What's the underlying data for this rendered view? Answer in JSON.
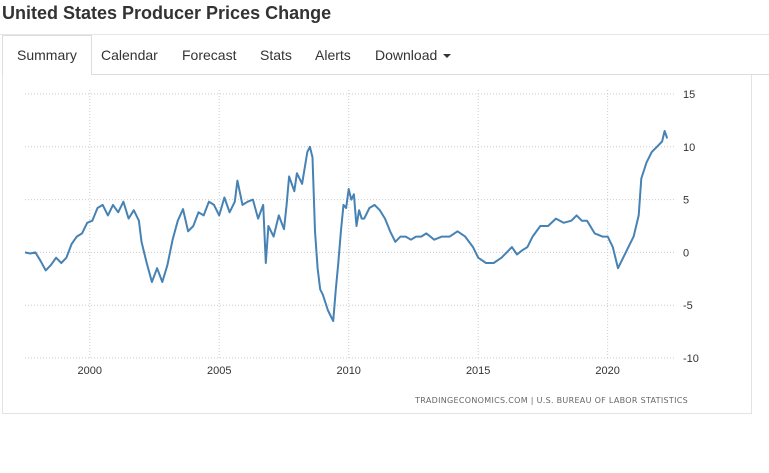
{
  "header": {
    "title": "United States Producer Prices Change"
  },
  "tabs": [
    {
      "label": "Summary",
      "active": true
    },
    {
      "label": "Calendar"
    },
    {
      "label": "Forecast"
    },
    {
      "label": "Stats"
    },
    {
      "label": "Alerts"
    },
    {
      "label": "Download",
      "has_dropdown": true
    }
  ],
  "colors": {
    "line": "#4682b4",
    "grid": "#cccccc",
    "text": "#333333"
  },
  "chart_data": {
    "type": "line",
    "title": "",
    "xlabel": "",
    "ylabel": "",
    "xlim": [
      1997.5,
      2022.6
    ],
    "ylim": [
      -10,
      15
    ],
    "yaxis_side": "right",
    "grid": "dotted",
    "x_ticks": [
      "2000",
      "2005",
      "2010",
      "2015",
      "2020"
    ],
    "y_ticks": [
      "15",
      "10",
      "5",
      "0",
      "-5",
      "-10"
    ],
    "source": "TRADINGECONOMICS.COM | U.S. BUREAU OF LABOR STATISTICS",
    "series": [
      {
        "x": [
          1997.5,
          1997.7,
          1997.9,
          1998.1,
          1998.3,
          1998.5,
          1998.7,
          1998.9,
          1999.1,
          1999.3,
          1999.5,
          1999.7,
          1999.9,
          2000.1,
          2000.3,
          2000.5,
          2000.7,
          2000.9,
          2001.1,
          2001.3,
          2001.5,
          2001.7,
          2001.9,
          2002.0,
          2002.2,
          2002.4,
          2002.6,
          2002.8,
          2003.0,
          2003.2,
          2003.4,
          2003.6,
          2003.8,
          2004.0,
          2004.2,
          2004.4,
          2004.6,
          2004.8,
          2005.0,
          2005.2,
          2005.4,
          2005.6,
          2005.7,
          2005.9,
          2006.1,
          2006.3,
          2006.5,
          2006.7,
          2006.8,
          2006.9,
          2007.1,
          2007.3,
          2007.5,
          2007.6,
          2007.7,
          2007.9,
          2008.0,
          2008.2,
          2008.4,
          2008.5,
          2008.6,
          2008.7,
          2008.8,
          2008.9,
          2009.0,
          2009.2,
          2009.4,
          2009.5,
          2009.6,
          2009.7,
          2009.8,
          2009.9,
          2010.0,
          2010.1,
          2010.2,
          2010.3,
          2010.4,
          2010.5,
          2010.6,
          2010.8,
          2011.0,
          2011.2,
          2011.4,
          2011.6,
          2011.8,
          2012.0,
          2012.2,
          2012.4,
          2012.6,
          2012.8,
          2013.0,
          2013.3,
          2013.6,
          2013.9,
          2014.2,
          2014.5,
          2014.8,
          2015.0,
          2015.3,
          2015.6,
          2015.9,
          2016.1,
          2016.3,
          2016.5,
          2016.7,
          2016.9,
          2017.1,
          2017.4,
          2017.7,
          2018.0,
          2018.3,
          2018.6,
          2018.8,
          2019.0,
          2019.2,
          2019.5,
          2019.8,
          2020.0,
          2020.2,
          2020.4,
          2020.6,
          2020.8,
          2021.0,
          2021.2,
          2021.3,
          2021.5,
          2021.7,
          2021.9,
          2022.1,
          2022.2,
          2022.3
        ],
        "values": [
          0,
          -0.1,
          0,
          -0.8,
          -1.7,
          -1.2,
          -0.5,
          -1,
          -0.5,
          0.8,
          1.5,
          1.8,
          2.8,
          3,
          4.2,
          4.5,
          3.5,
          4.5,
          3.8,
          4.8,
          3.2,
          4,
          3,
          1,
          -1,
          -2.8,
          -1.5,
          -2.8,
          -1.2,
          1.2,
          3,
          4.1,
          2,
          2.5,
          3.8,
          3.5,
          4.8,
          4.5,
          3.5,
          5.2,
          3.8,
          4.8,
          6.8,
          4.5,
          4.8,
          5,
          3.2,
          4.5,
          -1,
          2.5,
          1.5,
          3.5,
          2.2,
          4.5,
          7.2,
          5.8,
          7.5,
          6.5,
          9.5,
          10,
          9,
          2,
          -1.5,
          -3.5,
          -4,
          -5.5,
          -6.5,
          -3.5,
          -1,
          2,
          4.5,
          4.2,
          6,
          5,
          5.5,
          2.5,
          4,
          3.2,
          3.2,
          4.2,
          4.5,
          4,
          3.2,
          2,
          1,
          1.5,
          1.5,
          1.2,
          1.5,
          1.5,
          1.8,
          1.2,
          1.5,
          1.5,
          2,
          1.5,
          0.5,
          -0.5,
          -1,
          -1,
          -0.5,
          0,
          0.5,
          -0.2,
          0.2,
          0.5,
          1.5,
          2.5,
          2.5,
          3.2,
          2.8,
          3,
          3.5,
          3,
          3,
          1.8,
          1.5,
          1.5,
          0.5,
          -1.5,
          -0.5,
          0.5,
          1.5,
          3.5,
          7,
          8.5,
          9.5,
          10,
          10.5,
          11.5,
          10.8
        ]
      }
    ]
  }
}
